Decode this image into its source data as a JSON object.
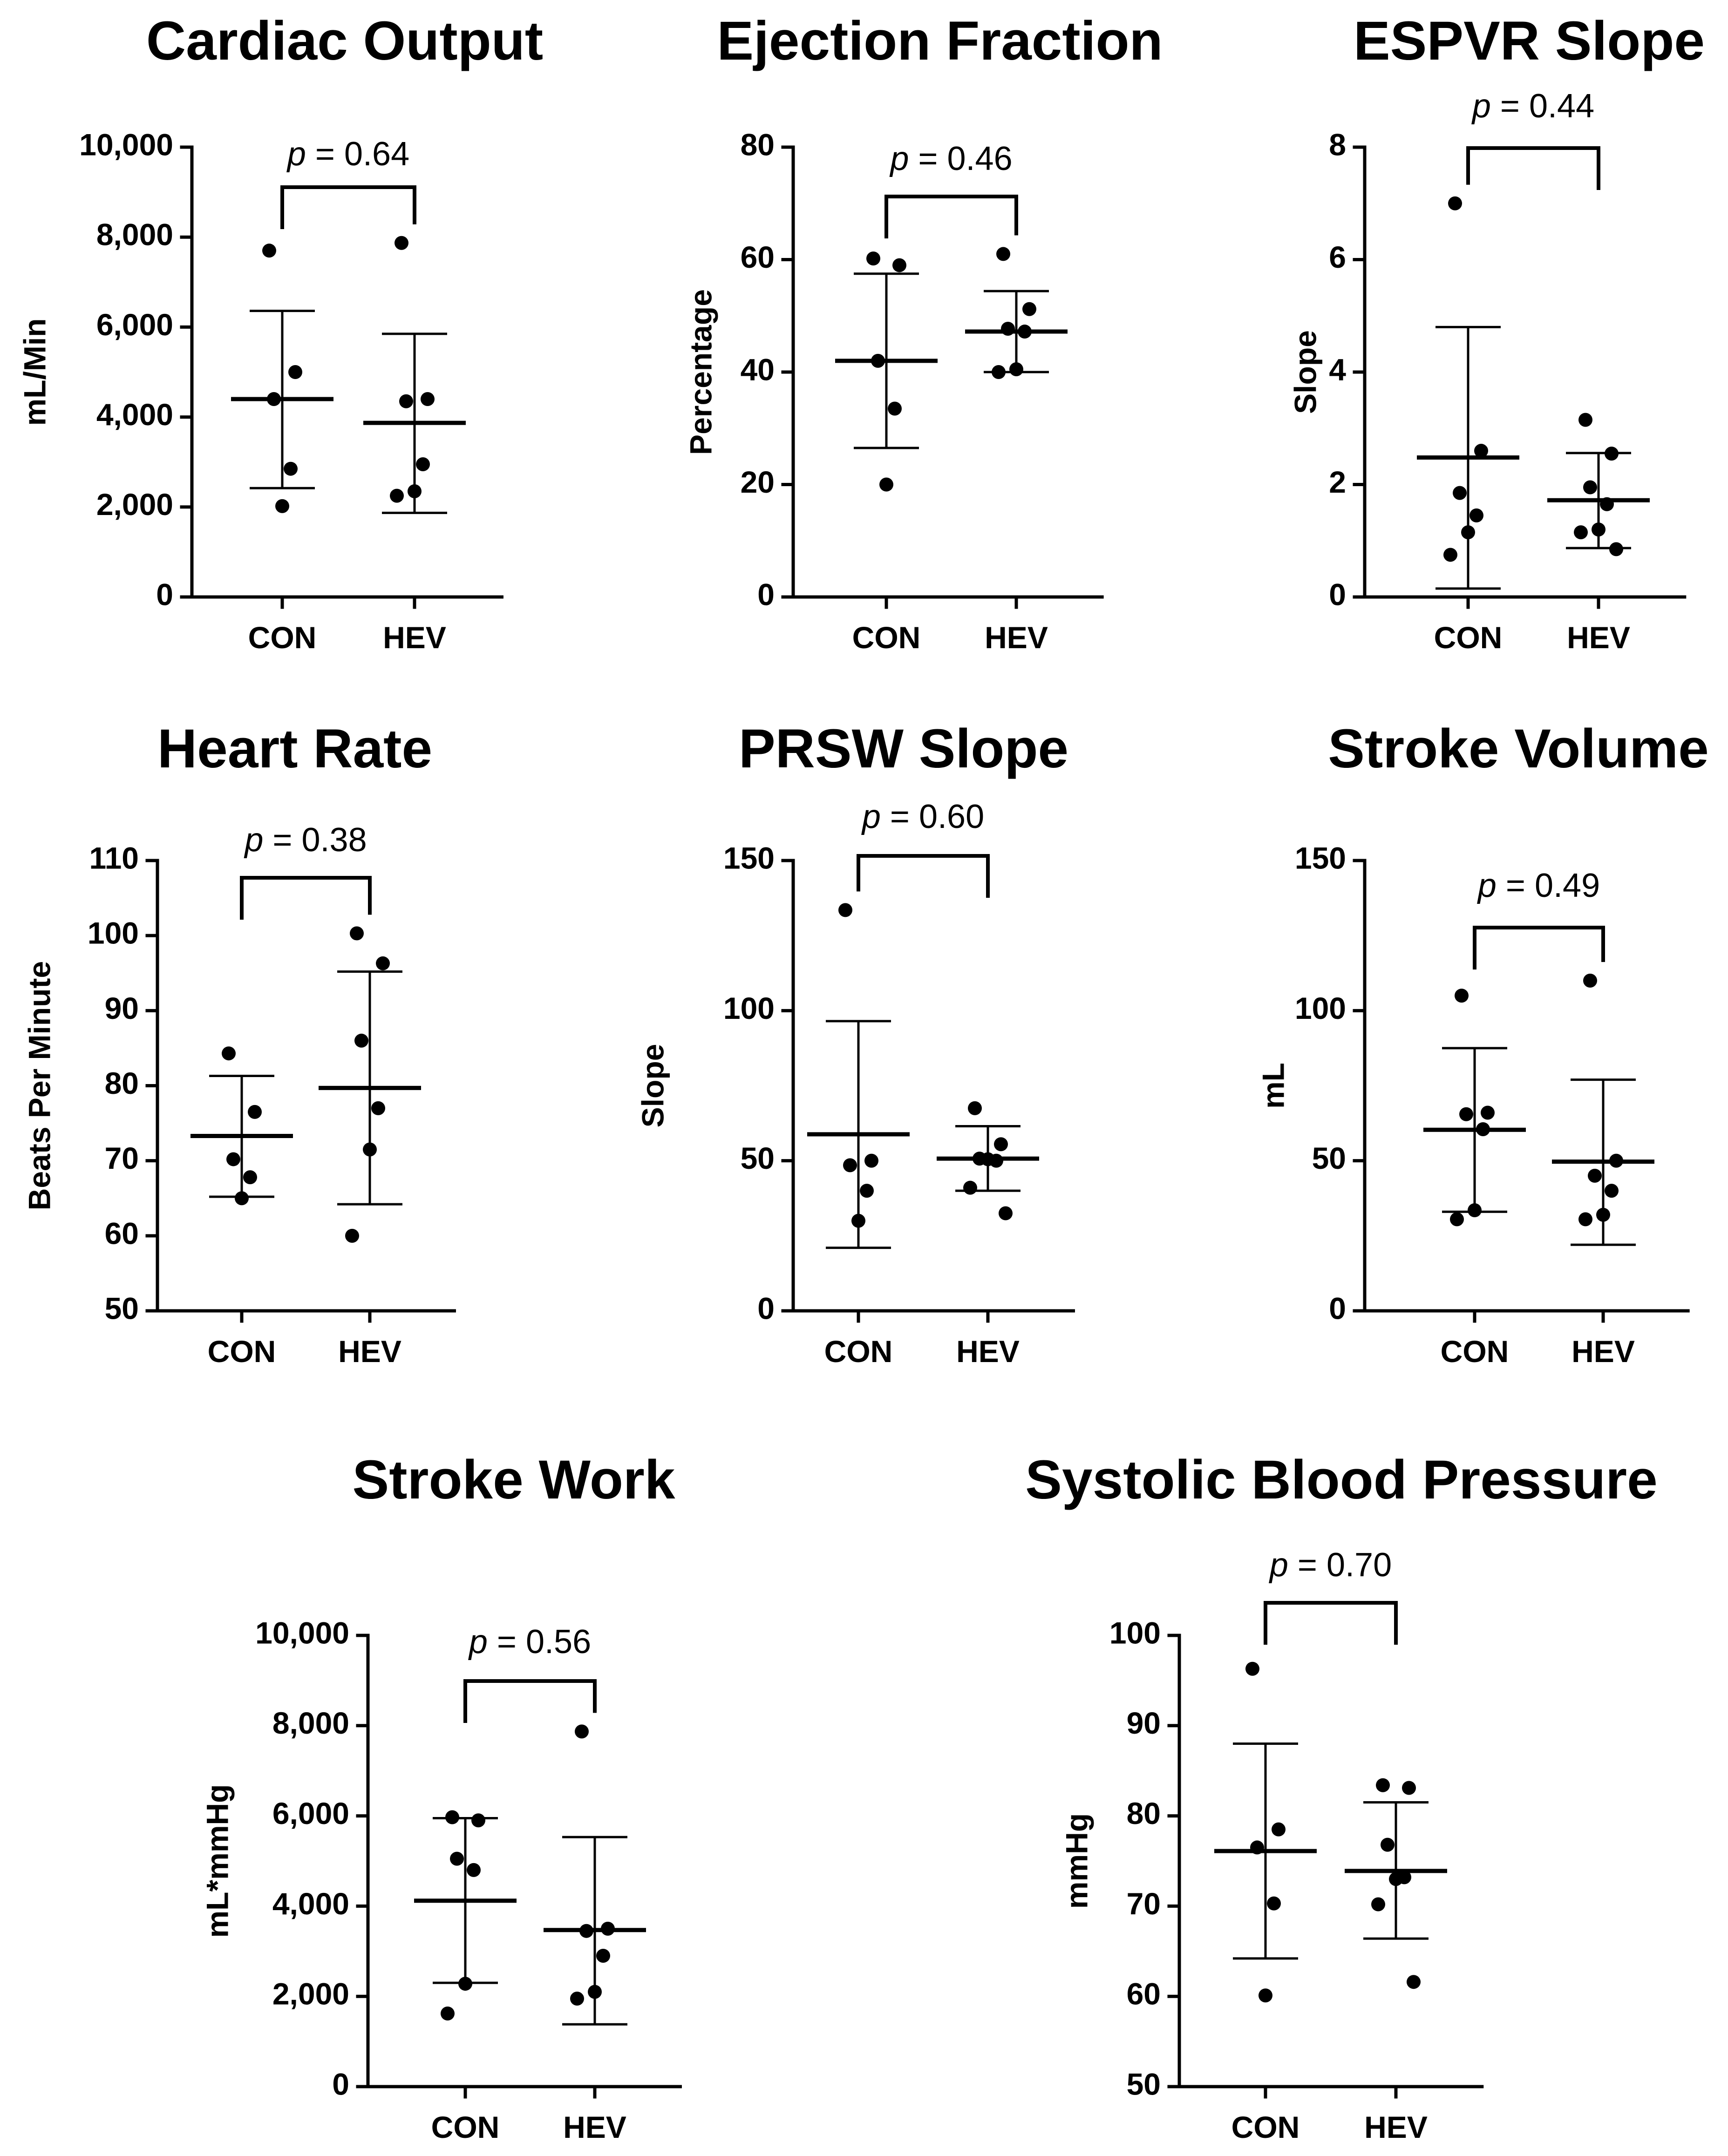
{
  "chart_data": [
    {
      "type": "scatter",
      "title": "Cardiac Output",
      "ylabel": "mL/Min",
      "categories": [
        "CON",
        "HEV"
      ],
      "ylim": [
        0,
        10000
      ],
      "yticks": [
        0,
        2000,
        4000,
        6000,
        8000,
        10000
      ],
      "ytick_labels": [
        "0",
        "2,000",
        "4,000",
        "6,000",
        "8,000",
        "10,000"
      ],
      "p_value": "= 0.64",
      "groups": [
        {
          "name": "CON",
          "mean": 4400,
          "err_low": 2420,
          "err_high": 6360,
          "points": [
            7700,
            5000,
            4400,
            2850,
            2020
          ]
        },
        {
          "name": "HEV",
          "mean": 3870,
          "err_low": 1870,
          "err_high": 5850,
          "points": [
            7870,
            4400,
            4350,
            2950,
            2350,
            2250
          ]
        }
      ]
    },
    {
      "type": "scatter",
      "title": "Ejection Fraction",
      "ylabel": "Percentage",
      "categories": [
        "CON",
        "HEV"
      ],
      "ylim": [
        0,
        80
      ],
      "yticks": [
        0,
        20,
        40,
        60,
        80
      ],
      "ytick_labels": [
        "0",
        "20",
        "40",
        "60",
        "80"
      ],
      "p_value": "= 0.46",
      "groups": [
        {
          "name": "CON",
          "mean": 42,
          "err_low": 26.5,
          "err_high": 57.5,
          "points": [
            60.2,
            59,
            42,
            33.5,
            20
          ]
        },
        {
          "name": "HEV",
          "mean": 47.2,
          "err_low": 40,
          "err_high": 54.4,
          "points": [
            61,
            51.2,
            47.7,
            47.2,
            40.5,
            40
          ]
        }
      ]
    },
    {
      "type": "scatter",
      "title": "ESPVR Slope",
      "ylabel": "Slope",
      "categories": [
        "CON",
        "HEV"
      ],
      "ylim": [
        0,
        8
      ],
      "yticks": [
        0,
        2,
        4,
        6,
        8
      ],
      "ytick_labels": [
        "0",
        "2",
        "4",
        "6",
        "8"
      ],
      "p_value": "= 0.44",
      "groups": [
        {
          "name": "CON",
          "mean": 2.48,
          "err_low": 0.15,
          "err_high": 4.8,
          "points": [
            7.0,
            2.6,
            1.85,
            1.45,
            1.15,
            0.75
          ]
        },
        {
          "name": "HEV",
          "mean": 1.72,
          "err_low": 0.87,
          "err_high": 2.56,
          "points": [
            3.15,
            2.55,
            1.95,
            1.65,
            1.2,
            1.15,
            0.85
          ]
        }
      ]
    },
    {
      "type": "scatter",
      "title": "Heart Rate",
      "ylabel": "Beats Per Minute",
      "categories": [
        "CON",
        "HEV"
      ],
      "ylim": [
        50,
        110
      ],
      "yticks": [
        50,
        60,
        70,
        80,
        90,
        100,
        110
      ],
      "ytick_labels": [
        "50",
        "60",
        "70",
        "80",
        "90",
        "100",
        "110"
      ],
      "p_value": "= 0.38",
      "groups": [
        {
          "name": "CON",
          "mean": 73.3,
          "err_low": 65.2,
          "err_high": 81.3,
          "points": [
            84.3,
            76.5,
            70.2,
            67.8,
            65
          ]
        },
        {
          "name": "HEV",
          "mean": 79.7,
          "err_low": 64.2,
          "err_high": 95.2,
          "points": [
            100.3,
            96.3,
            86,
            77,
            71.5,
            60
          ]
        }
      ]
    },
    {
      "type": "scatter",
      "title": "PRSW Slope",
      "ylabel": "Slope",
      "categories": [
        "CON",
        "HEV"
      ],
      "ylim": [
        0,
        150
      ],
      "yticks": [
        0,
        50,
        100,
        150
      ],
      "ytick_labels": [
        "0",
        "50",
        "100",
        "150"
      ],
      "p_value": "= 0.60",
      "groups": [
        {
          "name": "CON",
          "mean": 58.8,
          "err_low": 21,
          "err_high": 96.5,
          "points": [
            133.5,
            50,
            48.5,
            40,
            30
          ]
        },
        {
          "name": "HEV",
          "mean": 50.7,
          "err_low": 40,
          "err_high": 61.5,
          "points": [
            67.5,
            55.5,
            50.7,
            50,
            50.5,
            41,
            32.5
          ]
        }
      ]
    },
    {
      "type": "scatter",
      "title": "Stroke Volume",
      "ylabel": "mL",
      "categories": [
        "CON",
        "HEV"
      ],
      "ylim": [
        0,
        150
      ],
      "yticks": [
        0,
        50,
        100,
        150
      ],
      "ytick_labels": [
        "0",
        "50",
        "100",
        "150"
      ],
      "p_value": "= 0.49",
      "groups": [
        {
          "name": "CON",
          "mean": 60.3,
          "err_low": 33,
          "err_high": 87.5,
          "points": [
            105,
            66,
            65.5,
            60.5,
            33.5,
            30.5
          ]
        },
        {
          "name": "HEV",
          "mean": 49.7,
          "err_low": 22,
          "err_high": 77,
          "points": [
            110,
            50,
            45,
            40,
            32,
            30.5
          ]
        }
      ]
    },
    {
      "type": "scatter",
      "title": "Stroke Work",
      "ylabel": "mL*mmHg",
      "categories": [
        "CON",
        "HEV"
      ],
      "ylim": [
        0,
        10000
      ],
      "yticks": [
        0,
        2000,
        4000,
        6000,
        8000,
        10000
      ],
      "ytick_labels": [
        "0",
        "2,000",
        "4,000",
        "6,000",
        "8,000",
        "10,000"
      ],
      "p_value": "= 0.56",
      "groups": [
        {
          "name": "CON",
          "mean": 4120,
          "err_low": 2300,
          "err_high": 5950,
          "points": [
            5970,
            5900,
            5050,
            4800,
            2280,
            1620
          ]
        },
        {
          "name": "HEV",
          "mean": 3470,
          "err_low": 1380,
          "err_high": 5530,
          "points": [
            7870,
            3500,
            3450,
            2900,
            2100,
            1950
          ]
        }
      ]
    },
    {
      "type": "scatter",
      "title": "Systolic Blood Pressure",
      "ylabel": "mmHg",
      "categories": [
        "CON",
        "HEV"
      ],
      "ylim": [
        50,
        100
      ],
      "yticks": [
        50,
        60,
        70,
        80,
        90,
        100
      ],
      "ytick_labels": [
        "50",
        "60",
        "70",
        "80",
        "90",
        "100"
      ],
      "p_value": "= 0.70",
      "groups": [
        {
          "name": "CON",
          "mean": 76.1,
          "err_low": 64.2,
          "err_high": 88,
          "points": [
            96.3,
            78.5,
            76.5,
            70.3,
            60.1
          ]
        },
        {
          "name": "HEV",
          "mean": 73.9,
          "err_low": 66.4,
          "err_high": 81.5,
          "points": [
            83.4,
            83.1,
            76.8,
            73.2,
            73,
            70.2,
            61.6
          ]
        }
      ]
    }
  ]
}
